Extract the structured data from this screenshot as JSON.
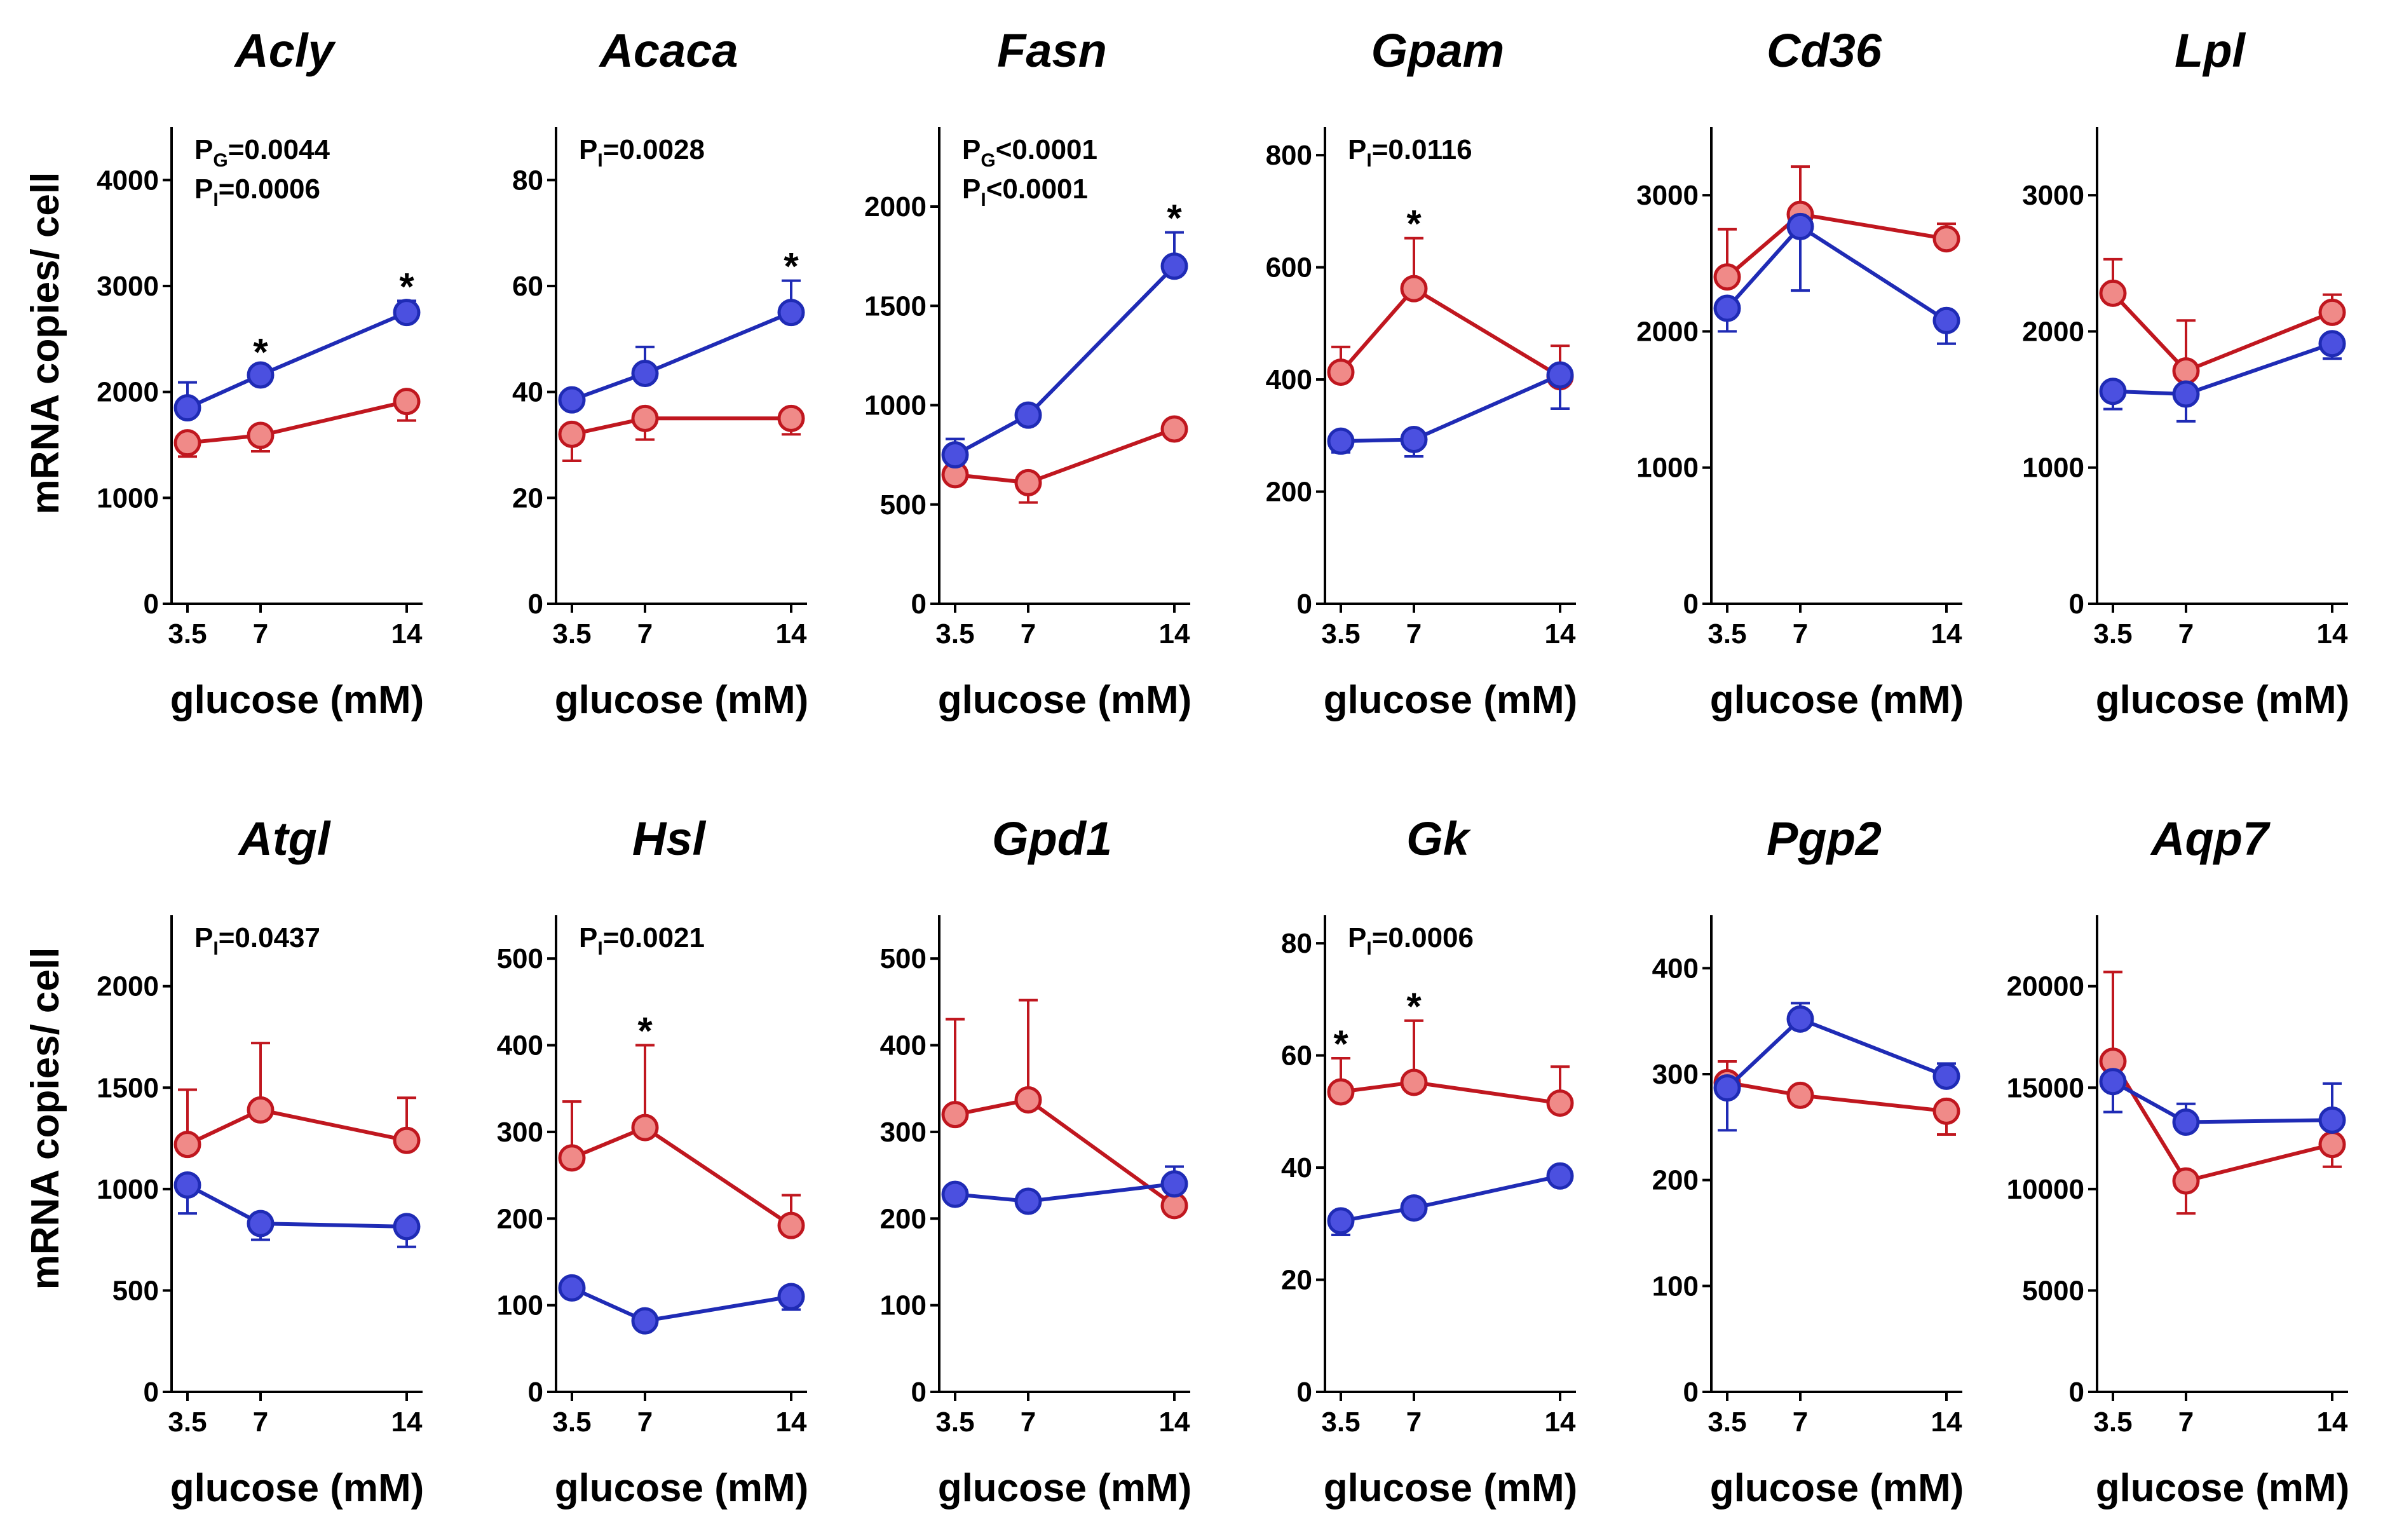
{
  "colors": {
    "blue_line": "#1f2bb5",
    "blue_fill": "#4b50e0",
    "red_line": "#c0171f",
    "red_fill": "#f08a88",
    "axis": "#000000"
  },
  "ylabel": "mRNA copies/ cell",
  "chart_data": [
    {
      "type": "line",
      "title": "Acly",
      "xlabel": "glucose (mM)",
      "ylabel": "mRNA copies/ cell",
      "x": [
        3.5,
        7,
        14
      ],
      "x_tick_labels": [
        "3.5",
        "7",
        "14"
      ],
      "ylim": [
        0,
        4500
      ],
      "yticks": [
        0,
        1000,
        2000,
        3000,
        4000
      ],
      "y_tick_labels": [
        "0",
        "1000",
        "2000",
        "3000",
        "4000"
      ],
      "series": [
        {
          "name": "blue",
          "values": [
            1850,
            2160,
            2750
          ],
          "errors": [
            240,
            80,
            110
          ],
          "err_dir": "up"
        },
        {
          "name": "red",
          "values": [
            1520,
            1590,
            1910
          ],
          "errors": [
            130,
            150,
            180
          ],
          "err_dir": "down"
        }
      ],
      "annotations": [
        {
          "text": "P_G=0.0044",
          "base": "P",
          "sub": "G",
          "rest": "=0.0044"
        },
        {
          "text": "P_I=0.0006",
          "base": "P",
          "sub": "I",
          "rest": "=0.0006"
        }
      ],
      "stars": [
        7,
        14
      ],
      "star_labels": [
        "*",
        "*"
      ]
    },
    {
      "type": "line",
      "title": "Acaca",
      "xlabel": "glucose (mM)",
      "ylabel": "mRNA copies/ cell",
      "x": [
        3.5,
        7,
        14
      ],
      "x_tick_labels": [
        "3.5",
        "7",
        "14"
      ],
      "ylim": [
        0,
        90
      ],
      "yticks": [
        0,
        20,
        40,
        60,
        80
      ],
      "y_tick_labels": [
        "0",
        "20",
        "40",
        "60",
        "80"
      ],
      "series": [
        {
          "name": "blue",
          "values": [
            38.5,
            43.5,
            55
          ],
          "errors": [
            1.5,
            5,
            6
          ],
          "err_dir": "up"
        },
        {
          "name": "red",
          "values": [
            32,
            35,
            35
          ],
          "errors": [
            5,
            4,
            3
          ],
          "err_dir": "down"
        }
      ],
      "annotations": [
        {
          "text": "P_I=0.0028",
          "base": "P",
          "sub": "I",
          "rest": "=0.0028"
        }
      ],
      "stars": [
        14
      ],
      "star_labels": [
        "*"
      ]
    },
    {
      "type": "line",
      "title": "Fasn",
      "xlabel": "glucose (mM)",
      "ylabel": "mRNA copies/ cell",
      "x": [
        3.5,
        7,
        14
      ],
      "x_tick_labels": [
        "3.5",
        "7",
        "14"
      ],
      "ylim": [
        0,
        2400
      ],
      "yticks": [
        0,
        500,
        1000,
        1500,
        2000
      ],
      "y_tick_labels": [
        "0",
        "500",
        "1000",
        "1500",
        "2000"
      ],
      "series": [
        {
          "name": "blue",
          "values": [
            750,
            950,
            1700
          ],
          "errors": [
            80,
            40,
            170
          ],
          "err_dir": "up"
        },
        {
          "name": "red",
          "values": [
            650,
            610,
            880
          ],
          "errors": [
            40,
            100,
            40
          ],
          "err_dir": "down"
        }
      ],
      "annotations": [
        {
          "text": "P_G<0.0001",
          "base": "P",
          "sub": "G",
          "rest": "<0.0001"
        },
        {
          "text": "P_I<0.0001",
          "base": "P",
          "sub": "I",
          "rest": "<0.0001"
        }
      ],
      "stars": [
        14
      ],
      "star_labels": [
        "*"
      ]
    },
    {
      "type": "line",
      "title": "Gpam",
      "xlabel": "glucose (mM)",
      "ylabel": "mRNA copies/ cell",
      "x": [
        3.5,
        7,
        14
      ],
      "x_tick_labels": [
        "3.5",
        "7",
        "14"
      ],
      "ylim": [
        0,
        850
      ],
      "yticks": [
        0,
        200,
        400,
        600,
        800
      ],
      "y_tick_labels": [
        "0",
        "200",
        "400",
        "600",
        "800"
      ],
      "series": [
        {
          "name": "blue",
          "values": [
            290,
            293,
            408
          ],
          "errors": [
            20,
            30,
            60
          ],
          "err_dir": "down"
        },
        {
          "name": "red",
          "values": [
            413,
            562,
            405
          ],
          "errors": [
            45,
            90,
            55
          ],
          "err_dir": "up"
        }
      ],
      "annotations": [
        {
          "text": "P_I=0.0116",
          "base": "P",
          "sub": "I",
          "rest": "=0.0116"
        }
      ],
      "stars": [
        7
      ],
      "star_labels": [
        "*"
      ]
    },
    {
      "type": "line",
      "title": "Cd36",
      "xlabel": "glucose (mM)",
      "ylabel": "mRNA copies/ cell",
      "x": [
        3.5,
        7,
        14
      ],
      "x_tick_labels": [
        "3.5",
        "7",
        "14"
      ],
      "ylim": [
        0,
        3500
      ],
      "yticks": [
        0,
        1000,
        2000,
        3000
      ],
      "y_tick_labels": [
        "0",
        "1000",
        "2000",
        "3000"
      ],
      "series": [
        {
          "name": "blue",
          "values": [
            2170,
            2770,
            2080
          ],
          "errors": [
            170,
            470,
            170
          ],
          "err_dir": "down"
        },
        {
          "name": "red",
          "values": [
            2400,
            2860,
            2680
          ],
          "errors": [
            350,
            350,
            110
          ],
          "err_dir": "up"
        }
      ],
      "annotations": [],
      "stars": [],
      "star_labels": []
    },
    {
      "type": "line",
      "title": "Lpl",
      "xlabel": "glucose (mM)",
      "ylabel": "mRNA copies/ cell",
      "x": [
        3.5,
        7,
        14
      ],
      "x_tick_labels": [
        "3.5",
        "7",
        "14"
      ],
      "ylim": [
        0,
        3500
      ],
      "yticks": [
        0,
        1000,
        2000,
        3000
      ],
      "y_tick_labels": [
        "0",
        "1000",
        "2000",
        "3000"
      ],
      "series": [
        {
          "name": "blue",
          "values": [
            1560,
            1540,
            1910
          ],
          "errors": [
            130,
            200,
            110
          ],
          "err_dir": "down"
        },
        {
          "name": "red",
          "values": [
            2280,
            1710,
            2140
          ],
          "errors": [
            250,
            370,
            130
          ],
          "err_dir": "up"
        }
      ],
      "annotations": [],
      "stars": [],
      "star_labels": []
    },
    {
      "type": "line",
      "title": "Atgl",
      "xlabel": "glucose (mM)",
      "ylabel": "mRNA copies/ cell",
      "x": [
        3.5,
        7,
        14
      ],
      "x_tick_labels": [
        "3.5",
        "7",
        "14"
      ],
      "ylim": [
        0,
        2350
      ],
      "yticks": [
        0,
        500,
        1000,
        1500,
        2000
      ],
      "y_tick_labels": [
        "0",
        "500",
        "1000",
        "1500",
        "2000"
      ],
      "series": [
        {
          "name": "blue",
          "values": [
            1020,
            830,
            815
          ],
          "errors": [
            140,
            80,
            100
          ],
          "err_dir": "down"
        },
        {
          "name": "red",
          "values": [
            1220,
            1390,
            1240
          ],
          "errors": [
            270,
            330,
            210
          ],
          "err_dir": "up"
        }
      ],
      "annotations": [
        {
          "text": "P_I=0.0437",
          "base": "P",
          "sub": "I",
          "rest": "=0.0437"
        }
      ],
      "stars": [],
      "star_labels": []
    },
    {
      "type": "line",
      "title": "Hsl",
      "xlabel": "glucose (mM)",
      "ylabel": "mRNA copies/ cell",
      "x": [
        3.5,
        7,
        14
      ],
      "x_tick_labels": [
        "3.5",
        "7",
        "14"
      ],
      "ylim": [
        0,
        550
      ],
      "yticks": [
        0,
        100,
        200,
        300,
        400,
        500
      ],
      "y_tick_labels": [
        "0",
        "100",
        "200",
        "300",
        "400",
        "500"
      ],
      "series": [
        {
          "name": "blue",
          "values": [
            120,
            82,
            110
          ],
          "errors": [
            6,
            5,
            15
          ],
          "err_dir": "down"
        },
        {
          "name": "red",
          "values": [
            270,
            305,
            192
          ],
          "errors": [
            65,
            95,
            35
          ],
          "err_dir": "up"
        }
      ],
      "annotations": [
        {
          "text": "P_I=0.0021",
          "base": "P",
          "sub": "I",
          "rest": "=0.0021"
        }
      ],
      "stars": [
        7
      ],
      "star_labels": [
        "*"
      ]
    },
    {
      "type": "line",
      "title": "Gpd1",
      "xlabel": "glucose (mM)",
      "ylabel": "mRNA copies/ cell",
      "x": [
        3.5,
        7,
        14
      ],
      "x_tick_labels": [
        "3.5",
        "7",
        "14"
      ],
      "ylim": [
        0,
        550
      ],
      "yticks": [
        0,
        100,
        200,
        300,
        400,
        500
      ],
      "y_tick_labels": [
        "0",
        "100",
        "200",
        "300",
        "400",
        "500"
      ],
      "series": [
        {
          "name": "blue",
          "values": [
            228,
            220,
            240
          ],
          "errors": [
            5,
            5,
            20
          ],
          "err_dir": "up"
        },
        {
          "name": "red",
          "values": [
            320,
            337,
            215
          ],
          "errors": [
            110,
            115,
            5
          ],
          "err_dir": "up"
        }
      ],
      "annotations": [],
      "stars": [],
      "star_labels": []
    },
    {
      "type": "line",
      "title": "Gk",
      "xlabel": "glucose (mM)",
      "ylabel": "mRNA copies/ cell",
      "x": [
        3.5,
        7,
        14
      ],
      "x_tick_labels": [
        "3.5",
        "7",
        "14"
      ],
      "ylim": [
        0,
        85
      ],
      "yticks": [
        0,
        20,
        40,
        60,
        80
      ],
      "y_tick_labels": [
        "0",
        "20",
        "40",
        "60",
        "80"
      ],
      "series": [
        {
          "name": "blue",
          "values": [
            30.5,
            32.8,
            38.5
          ],
          "errors": [
            2.5,
            1,
            1
          ],
          "err_dir": "down"
        },
        {
          "name": "red",
          "values": [
            53.5,
            55.2,
            51.5
          ],
          "errors": [
            6,
            11,
            6.5
          ],
          "err_dir": "up"
        }
      ],
      "annotations": [
        {
          "text": "P_I=0.0006",
          "base": "P",
          "sub": "I",
          "rest": "=0.0006"
        }
      ],
      "stars": [
        3.5,
        7
      ],
      "star_labels": [
        "*",
        "*"
      ]
    },
    {
      "type": "line",
      "title": "Pgp2",
      "xlabel": "glucose (mM)",
      "ylabel": "mRNA copies/ cell",
      "x": [
        3.5,
        7,
        14
      ],
      "x_tick_labels": [
        "3.5",
        "7",
        "14"
      ],
      "ylim": [
        0,
        450
      ],
      "yticks": [
        0,
        100,
        200,
        300,
        400
      ],
      "y_tick_labels": [
        "0",
        "100",
        "200",
        "300",
        "400"
      ],
      "series": [
        {
          "name": "blue",
          "values": [
            287,
            352,
            298
          ],
          "errors": [
            40,
            15,
            12
          ],
          "err_dir": "mixed",
          "err_dirs": [
            "down",
            "up",
            "up"
          ]
        },
        {
          "name": "red",
          "values": [
            292,
            280,
            265
          ],
          "errors": [
            20,
            5,
            22
          ],
          "err_dir": "mixed",
          "err_dirs": [
            "up",
            "up",
            "down"
          ]
        }
      ],
      "annotations": [],
      "stars": [],
      "star_labels": []
    },
    {
      "type": "line",
      "title": "Aqp7",
      "xlabel": "glucose (mM)",
      "ylabel": "mRNA copies/ cell",
      "x": [
        3.5,
        7,
        14
      ],
      "x_tick_labels": [
        "3.5",
        "7",
        "14"
      ],
      "ylim": [
        0,
        23500
      ],
      "yticks": [
        0,
        5000,
        10000,
        15000,
        20000
      ],
      "y_tick_labels": [
        "0",
        "5000",
        "10000",
        "15000",
        "20000"
      ],
      "series": [
        {
          "name": "blue",
          "values": [
            15300,
            13300,
            13400
          ],
          "errors": [
            1500,
            900,
            1800
          ],
          "err_dir": "mixed",
          "err_dirs": [
            "down",
            "up",
            "up"
          ]
        },
        {
          "name": "red",
          "values": [
            16300,
            10400,
            12200
          ],
          "errors": [
            4400,
            1600,
            1100
          ],
          "err_dir": "mixed",
          "err_dirs": [
            "up",
            "down",
            "down"
          ]
        }
      ],
      "annotations": [],
      "stars": [],
      "star_labels": []
    }
  ]
}
